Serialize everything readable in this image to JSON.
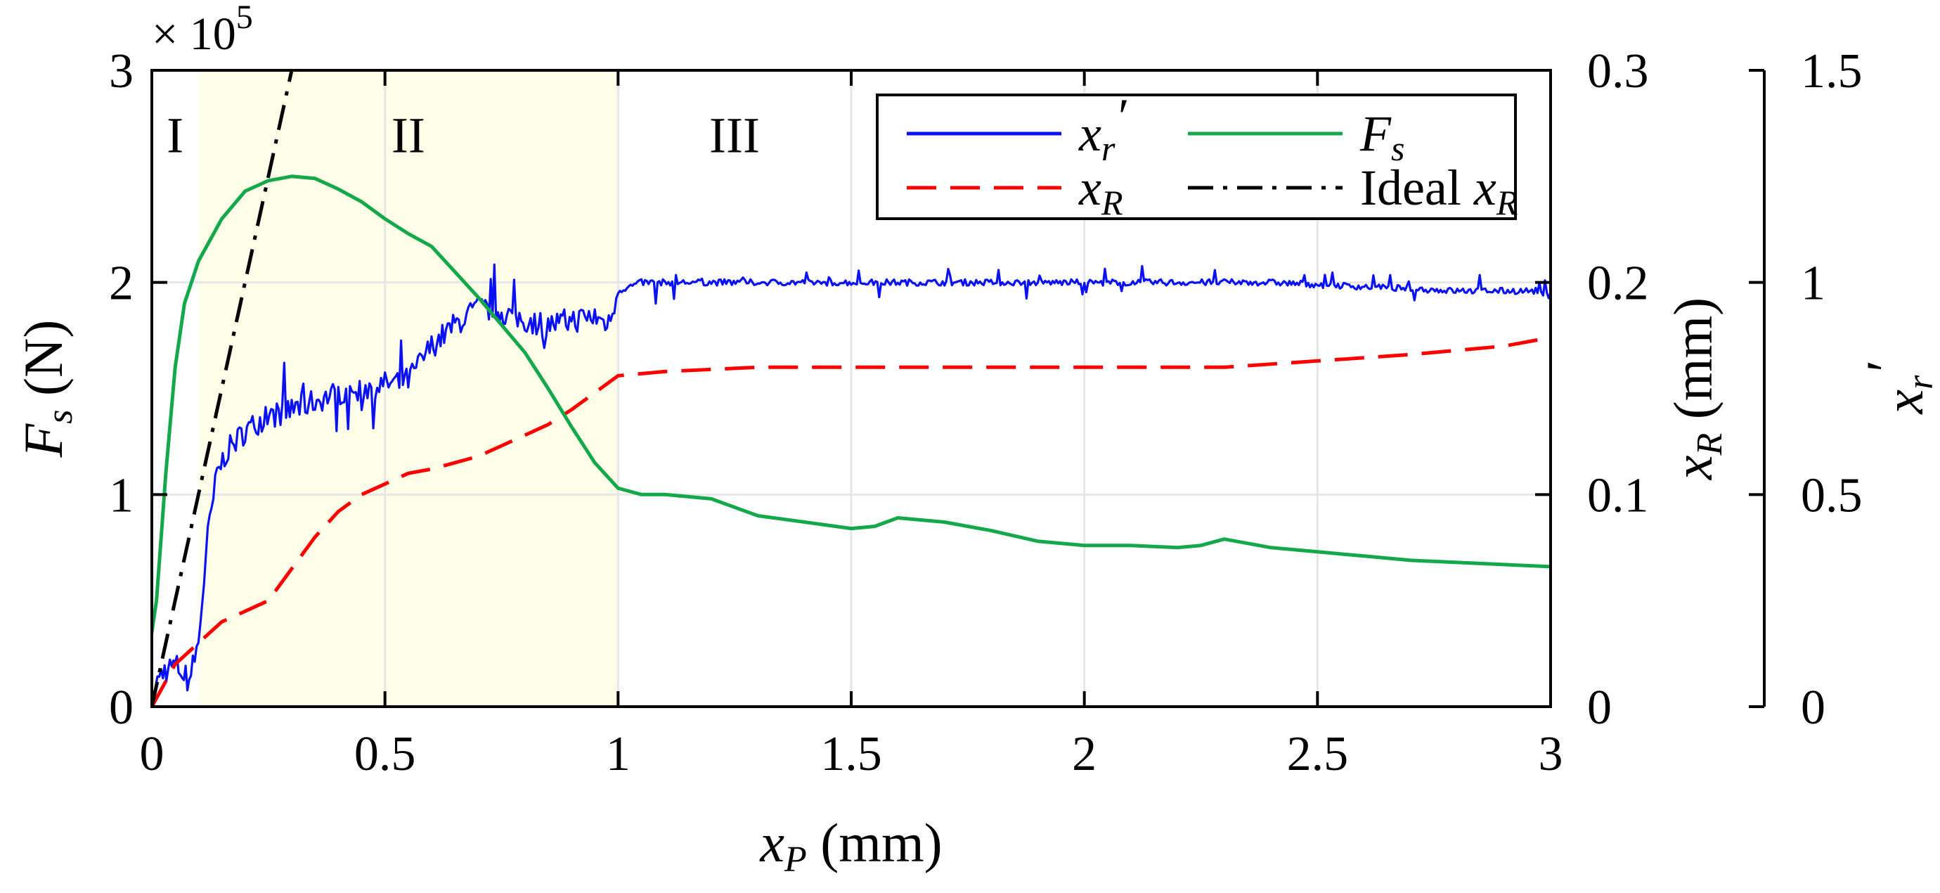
{
  "chart_data": {
    "type": "line",
    "x": {
      "label": "x_P (mm)",
      "label_main": "x",
      "label_sub": "P",
      "label_rest": " (mm)",
      "range": [
        0,
        3
      ],
      "ticks": [
        0,
        0.5,
        1,
        1.5,
        2,
        2.5,
        3
      ],
      "tick_labels": [
        "0",
        "0.5",
        "1",
        "1.5",
        "2",
        "2.5",
        "3"
      ],
      "grid": true
    },
    "y_left": {
      "label": "F_s (N)",
      "label_main": "F",
      "label_sub": "s",
      "label_rest": " (N)",
      "range": [
        0,
        3
      ],
      "ticks": [
        0,
        1,
        2,
        3
      ],
      "tick_labels": [
        "0",
        "1",
        "2",
        "3"
      ],
      "exponent_prefix": "× 10",
      "exponent_power": "5",
      "grid": true
    },
    "y_right1": {
      "label": "x_R (mm)",
      "label_main": "x",
      "label_sub": "R",
      "label_rest": " (mm)",
      "range": [
        0,
        0.3
      ],
      "ticks": [
        0,
        0.1,
        0.2,
        0.3
      ],
      "tick_labels": [
        "0",
        "0.1",
        "0.2",
        "0.3"
      ]
    },
    "y_right2": {
      "label": "x_r'",
      "label_main": "x",
      "label_sub": "r",
      "label_prime": "′",
      "range": [
        0,
        1.5
      ],
      "ticks": [
        0,
        0.5,
        1,
        1.5
      ],
      "tick_labels": [
        "0",
        "0.5",
        "1",
        "1.5"
      ]
    },
    "regions": [
      {
        "label": "I",
        "x_start": 0,
        "x_end": 0.1,
        "label_x": 0.05,
        "label_y": 2.7,
        "shaded": false
      },
      {
        "label": "II",
        "x_start": 0.1,
        "x_end": 1.0,
        "label_x": 0.55,
        "label_y": 2.7,
        "shaded": true,
        "color": "#fdfde8"
      },
      {
        "label": "III",
        "x_start": 1.0,
        "x_end": 3.0,
        "label_x": 1.25,
        "label_y": 2.7,
        "shaded": false
      }
    ],
    "series": [
      {
        "name": "x_r'",
        "legend_main": "x",
        "legend_sub": "r",
        "legend_prime": "′",
        "axis": "y_right2",
        "color": "#0a12f5",
        "dash": "solid",
        "noisy": true,
        "points": [
          [
            0,
            0.02
          ],
          [
            0.02,
            0.08
          ],
          [
            0.05,
            0.1
          ],
          [
            0.08,
            0.06
          ],
          [
            0.1,
            0.15
          ],
          [
            0.12,
            0.4
          ],
          [
            0.14,
            0.55
          ],
          [
            0.16,
            0.6
          ],
          [
            0.2,
            0.65
          ],
          [
            0.24,
            0.68
          ],
          [
            0.3,
            0.7
          ],
          [
            0.35,
            0.72
          ],
          [
            0.4,
            0.74
          ],
          [
            0.45,
            0.75
          ],
          [
            0.5,
            0.76
          ],
          [
            0.55,
            0.77
          ],
          [
            0.6,
            0.85
          ],
          [
            0.65,
            0.9
          ],
          [
            0.7,
            0.94
          ],
          [
            0.75,
            0.93
          ],
          [
            0.8,
            0.91
          ],
          [
            0.85,
            0.9
          ],
          [
            0.9,
            0.91
          ],
          [
            0.95,
            0.92
          ],
          [
            0.98,
            0.9
          ],
          [
            1.0,
            0.98
          ],
          [
            1.05,
            1.0
          ],
          [
            1.1,
            1.0
          ],
          [
            1.2,
            1.0
          ],
          [
            1.4,
            1.0
          ],
          [
            1.6,
            1.0
          ],
          [
            1.8,
            1.0
          ],
          [
            2.0,
            1.0
          ],
          [
            2.2,
            1.0
          ],
          [
            2.4,
            1.0
          ],
          [
            2.6,
            0.99
          ],
          [
            2.8,
            0.98
          ],
          [
            3.0,
            0.98
          ]
        ]
      },
      {
        "name": "x_R",
        "legend_main": "x",
        "legend_sub": "R",
        "axis": "y_right1",
        "color": "#ff0000",
        "dash": "dashed",
        "noisy": false,
        "points": [
          [
            0,
            0.0
          ],
          [
            0.05,
            0.02
          ],
          [
            0.1,
            0.03
          ],
          [
            0.15,
            0.04
          ],
          [
            0.2,
            0.045
          ],
          [
            0.25,
            0.05
          ],
          [
            0.3,
            0.065
          ],
          [
            0.35,
            0.08
          ],
          [
            0.4,
            0.092
          ],
          [
            0.45,
            0.1
          ],
          [
            0.5,
            0.105
          ],
          [
            0.55,
            0.11
          ],
          [
            0.6,
            0.112
          ],
          [
            0.65,
            0.115
          ],
          [
            0.7,
            0.118
          ],
          [
            0.75,
            0.123
          ],
          [
            0.8,
            0.128
          ],
          [
            0.85,
            0.133
          ],
          [
            0.9,
            0.14
          ],
          [
            0.95,
            0.148
          ],
          [
            1.0,
            0.156
          ],
          [
            1.1,
            0.158
          ],
          [
            1.3,
            0.16
          ],
          [
            1.5,
            0.16
          ],
          [
            1.7,
            0.16
          ],
          [
            2.0,
            0.16
          ],
          [
            2.3,
            0.16
          ],
          [
            2.5,
            0.163
          ],
          [
            2.7,
            0.166
          ],
          [
            2.9,
            0.17
          ],
          [
            3.0,
            0.174
          ]
        ]
      },
      {
        "name": "F_s",
        "legend_main": "F",
        "legend_sub": "s",
        "axis": "y_left",
        "color": "#13a84a",
        "dash": "solid",
        "noisy": false,
        "points": [
          [
            0,
            0.35
          ],
          [
            0.01,
            0.5
          ],
          [
            0.02,
            0.8
          ],
          [
            0.03,
            1.1
          ],
          [
            0.05,
            1.6
          ],
          [
            0.07,
            1.9
          ],
          [
            0.1,
            2.1
          ],
          [
            0.15,
            2.3
          ],
          [
            0.2,
            2.43
          ],
          [
            0.25,
            2.48
          ],
          [
            0.3,
            2.5
          ],
          [
            0.35,
            2.49
          ],
          [
            0.4,
            2.44
          ],
          [
            0.45,
            2.38
          ],
          [
            0.5,
            2.3
          ],
          [
            0.55,
            2.23
          ],
          [
            0.6,
            2.17
          ],
          [
            0.65,
            2.05
          ],
          [
            0.7,
            1.93
          ],
          [
            0.75,
            1.8
          ],
          [
            0.8,
            1.67
          ],
          [
            0.85,
            1.5
          ],
          [
            0.9,
            1.32
          ],
          [
            0.95,
            1.15
          ],
          [
            1.0,
            1.03
          ],
          [
            1.05,
            1.0
          ],
          [
            1.1,
            1.0
          ],
          [
            1.2,
            0.98
          ],
          [
            1.3,
            0.9
          ],
          [
            1.4,
            0.87
          ],
          [
            1.5,
            0.84
          ],
          [
            1.55,
            0.85
          ],
          [
            1.6,
            0.89
          ],
          [
            1.7,
            0.87
          ],
          [
            1.8,
            0.83
          ],
          [
            1.9,
            0.78
          ],
          [
            2.0,
            0.76
          ],
          [
            2.1,
            0.76
          ],
          [
            2.2,
            0.75
          ],
          [
            2.25,
            0.76
          ],
          [
            2.3,
            0.79
          ],
          [
            2.4,
            0.75
          ],
          [
            2.5,
            0.73
          ],
          [
            2.6,
            0.71
          ],
          [
            2.7,
            0.69
          ],
          [
            2.8,
            0.68
          ],
          [
            2.9,
            0.67
          ],
          [
            3.0,
            0.66
          ]
        ]
      },
      {
        "name": "Ideal x_R",
        "legend_prefix": "Ideal ",
        "legend_main": "x",
        "legend_sub": "R",
        "axis": "y_right1",
        "color": "#000000",
        "dash": "dashdot",
        "noisy": false,
        "points": [
          [
            0,
            0.0
          ],
          [
            0.3,
            0.3
          ]
        ]
      }
    ],
    "legend": {
      "placement": "top-right",
      "columns": 2,
      "order": [
        "x_r'",
        "F_s",
        "x_R",
        "Ideal x_R"
      ]
    }
  }
}
